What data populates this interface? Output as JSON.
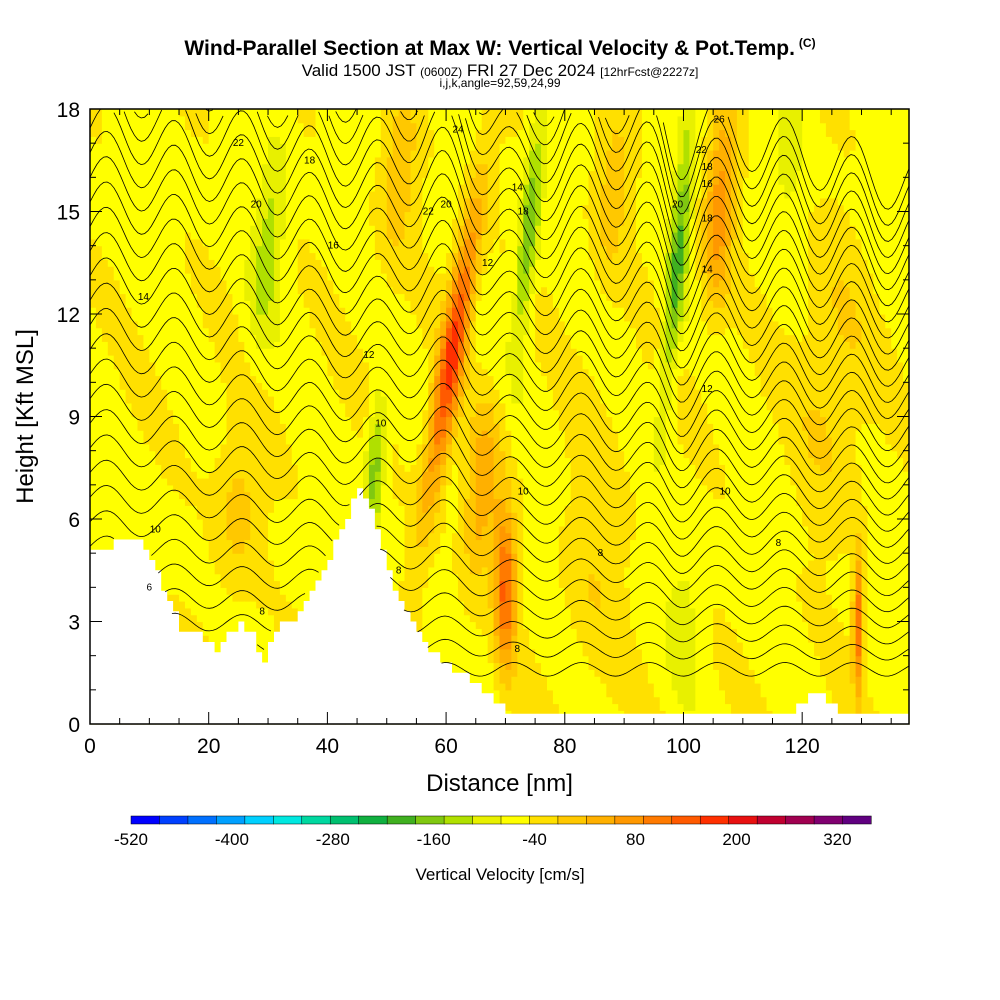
{
  "header": {
    "title": "Wind-Parallel Section at Max W: Vertical Velocity & Pot.Temp.",
    "copyright": "(C)",
    "valid_prefix": "Valid 1500 JST",
    "utc": "(0600Z)",
    "valid_date": "FRI 27 Dec 2024",
    "forecast": "[12hrFcst@2227z]",
    "grid_info": "i,j,k,angle=92,59,24,99"
  },
  "chart_data": {
    "type": "heatmap",
    "xlabel": "Distance [nm]",
    "ylabel": "Height [Kft MSL]",
    "xlim": [
      0,
      138
    ],
    "ylim": [
      0,
      18
    ],
    "x_ticks": [
      0,
      20,
      40,
      60,
      80,
      100,
      120
    ],
    "y_ticks": [
      0,
      3,
      6,
      9,
      12,
      15,
      18
    ],
    "colorbar": {
      "title": "Vertical Velocity [cm/s]",
      "tick_labels": [
        "-520",
        "-400",
        "-280",
        "-160",
        "-40",
        "80",
        "200",
        "320"
      ],
      "range": [
        -520,
        360
      ],
      "step": 40,
      "colors": [
        "#0000ff",
        "#0040ff",
        "#0070ff",
        "#00a0ff",
        "#00d0ff",
        "#00e8e0",
        "#00d8a0",
        "#00c070",
        "#10b040",
        "#40b020",
        "#80c810",
        "#b0e000",
        "#e8f000",
        "#ffff00",
        "#ffe000",
        "#ffc800",
        "#ffb000",
        "#ff9800",
        "#ff7a00",
        "#ff5a00",
        "#ff3000",
        "#e81010",
        "#c00030",
        "#a00050",
        "#800070",
        "#600080"
      ]
    },
    "terrain_profile": {
      "x": [
        0,
        3,
        6,
        9,
        11,
        13,
        15,
        17,
        19,
        21,
        23,
        25,
        27,
        29,
        31,
        33,
        35,
        37,
        39,
        41,
        43,
        45,
        47,
        49,
        51,
        53,
        55,
        57,
        59,
        61,
        63,
        65,
        67,
        69,
        71,
        73,
        75,
        80,
        90,
        100,
        110,
        118,
        121,
        123,
        125,
        128,
        130,
        134,
        138
      ],
      "height": [
        5.2,
        5.2,
        5.5,
        5.2,
        4.5,
        3.5,
        2.8,
        2.6,
        2.5,
        2.2,
        2.6,
        2.9,
        2.7,
        1.7,
        2.8,
        3.0,
        3.2,
        4.0,
        4.5,
        5.3,
        6.1,
        6.8,
        6.2,
        5.0,
        4.0,
        3.2,
        2.6,
        2.1,
        1.8,
        1.6,
        1.4,
        1.1,
        0.8,
        0.5,
        0.35,
        0.3,
        0.3,
        0.3,
        0.3,
        0.3,
        0.3,
        0.3,
        0.9,
        0.9,
        0.5,
        0.3,
        0.3,
        0.3,
        0.3
      ]
    },
    "velocity_features": [
      {
        "x": 61,
        "z": 10.8,
        "sx": 2.2,
        "sz": 4.5,
        "value": 260,
        "tilt": 0.9
      },
      {
        "x": 70,
        "z": 4.0,
        "sx": 1.8,
        "sz": 2.3,
        "value": 220,
        "tilt": 0
      },
      {
        "x": 66,
        "z": 6.8,
        "sx": 2.8,
        "sz": 2.5,
        "value": 120,
        "tilt": 0.4
      },
      {
        "x": 74,
        "z": 14.5,
        "sx": 1.6,
        "sz": 3.2,
        "value": -150,
        "tilt": 0.5
      },
      {
        "x": 99,
        "z": 13.5,
        "sx": 1.6,
        "sz": 4.0,
        "value": -160,
        "tilt": 0.5
      },
      {
        "x": 106,
        "z": 15.0,
        "sx": 2.5,
        "sz": 3.0,
        "value": 150,
        "tilt": 0.3
      },
      {
        "x": 48,
        "z": 7.5,
        "sx": 1.5,
        "sz": 2.0,
        "value": -140,
        "tilt": 0.3
      },
      {
        "x": 30,
        "z": 14.0,
        "sx": 2.5,
        "sz": 3.0,
        "value": -90,
        "tilt": 0.6
      },
      {
        "x": 129.5,
        "z": 3.0,
        "sx": 0.9,
        "sz": 2.0,
        "value": 210,
        "tilt": 0
      },
      {
        "x": 25,
        "z": 6.5,
        "sx": 4.0,
        "sz": 2.5,
        "value": 70,
        "tilt": 0
      },
      {
        "x": 85,
        "z": 5.0,
        "sx": 5.0,
        "sz": 4.0,
        "value": 45,
        "tilt": 0
      },
      {
        "x": 100,
        "z": 3.0,
        "sx": 3.0,
        "sz": 2.0,
        "value": -50,
        "tilt": 0
      },
      {
        "x": 125,
        "z": 10.0,
        "sx": 6.0,
        "sz": 4.0,
        "value": 60,
        "tilt": 0
      },
      {
        "x": 52,
        "z": 16.0,
        "sx": 3.0,
        "sz": 2.5,
        "value": 80,
        "tilt": 0.4
      },
      {
        "x": 88,
        "z": 15.5,
        "sx": 3.0,
        "sz": 2.5,
        "value": 70,
        "tilt": 0.3
      },
      {
        "x": 118,
        "z": 16.5,
        "sx": 3.0,
        "sz": 2.5,
        "value": -40,
        "tilt": 0.3
      }
    ],
    "theta_contour_labels": [
      "6",
      "8",
      "10",
      "12",
      "14",
      "16",
      "18",
      "20",
      "22",
      "24",
      "26"
    ]
  }
}
